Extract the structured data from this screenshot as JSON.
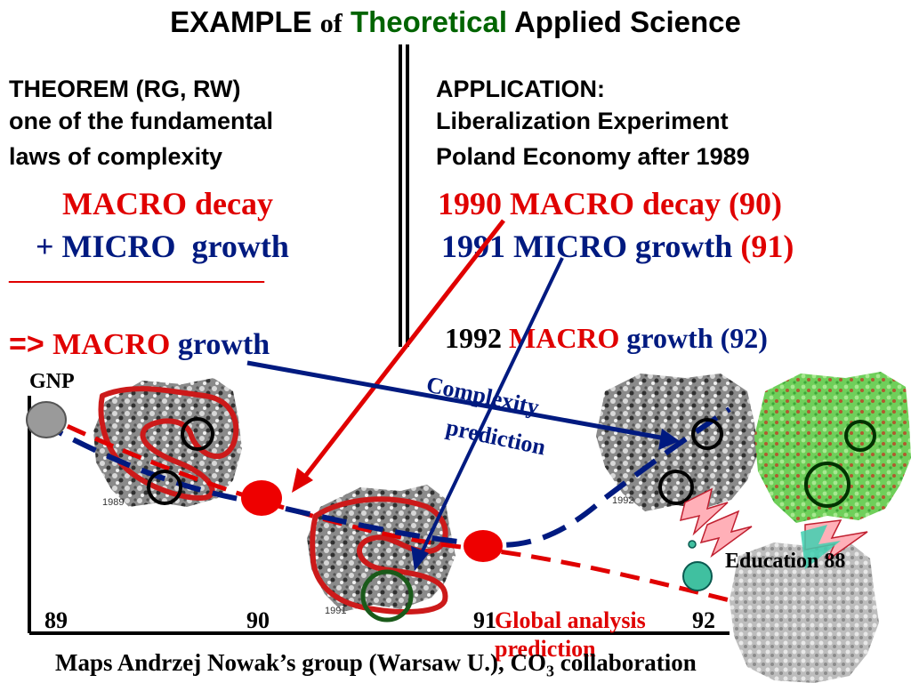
{
  "title": {
    "part1": "EXAMPLE ",
    "part2": "of",
    "part3": "Theoretical",
    "part4": " Applied Science"
  },
  "left": {
    "heading": [
      "THEOREM (RG, RW)",
      "one of the fundamental",
      "laws of complexity"
    ],
    "line1": "MACRO decay",
    "line2_plus": "+ ",
    "line2_micro": "MICRO",
    "line2_growth": "growth",
    "rule": "______________________",
    "result_arrow": "=> ",
    "result_macro": "MACRO",
    "result_growth": "growth"
  },
  "right": {
    "heading": [
      "APPLICATION:",
      "Liberalization Experiment",
      "Poland Economy after 1989"
    ],
    "line1": "1990 MACRO decay (90)",
    "line2_text": "1991 MICRO growth ",
    "line2_code": "(91)",
    "line3_year": "1992 ",
    "line3_macro": "MACRO",
    "line3_rest": " growth (92)"
  },
  "chart": {
    "y_label": "GNP",
    "years": [
      "89",
      "90",
      "91",
      "92"
    ],
    "map_labels": [
      "1989",
      "1991",
      "1992"
    ],
    "complexity_label": [
      "Complexity",
      "prediction"
    ],
    "global_label": [
      "Global analysis",
      "prediction"
    ],
    "education_label": "Education 88"
  },
  "footer": {
    "text": "Maps Andrzej Nowak’s group (Warsaw U.), CO",
    "sub": "3",
    "tail": " collaboration"
  },
  "colors": {
    "red": "#e00000",
    "navy": "#001a80",
    "green": "#006400"
  }
}
